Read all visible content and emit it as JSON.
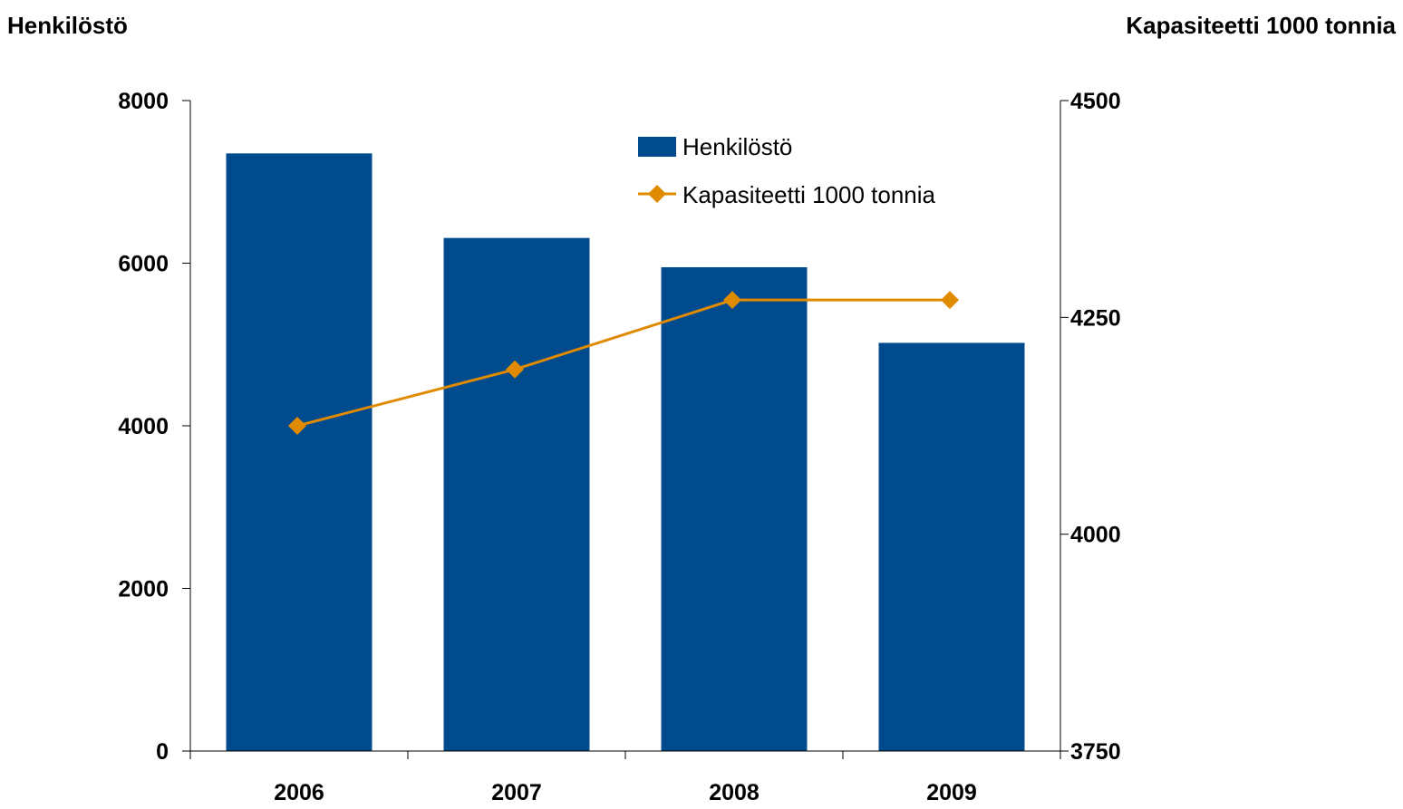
{
  "chart_data": {
    "type": "bar",
    "categories": [
      "2006",
      "2007",
      "2008",
      "2009"
    ],
    "series": [
      {
        "name": "Henkilöstö",
        "type": "bar",
        "axis": "left",
        "color": "#004B8D",
        "values": [
          7350,
          6310,
          5950,
          5020
        ]
      },
      {
        "name": "Kapasiteetti 1000 tonnia",
        "type": "line",
        "axis": "right",
        "color": "#E08A00",
        "marker": "diamond",
        "values": [
          4125,
          4190,
          4270,
          4270
        ]
      }
    ],
    "left_axis": {
      "title": "Henkilöstö",
      "ylim": [
        0,
        8000
      ],
      "ticks": [
        "0",
        "2000",
        "4000",
        "6000",
        "8000"
      ]
    },
    "right_axis": {
      "title": "Kapasiteetti 1000 tonnia",
      "ylim": [
        3750,
        4500
      ],
      "ticks": [
        "3750",
        "4000",
        "4250",
        "4500"
      ]
    },
    "grid": false,
    "legend_position": "top-right"
  }
}
